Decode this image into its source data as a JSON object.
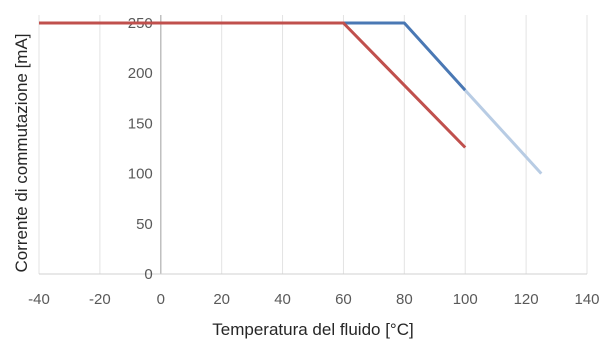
{
  "chart_data": {
    "type": "line",
    "xlabel": "Temperatura del fluido [°C]",
    "ylabel": "Corrente di commutazione [mA]",
    "xlim": [
      -40,
      140
    ],
    "ylim": [
      0,
      250
    ],
    "x_ticks": [
      -40,
      -20,
      0,
      20,
      40,
      60,
      80,
      100,
      120,
      140
    ],
    "y_ticks": [
      0,
      50,
      100,
      150,
      200,
      250
    ],
    "grid": "vertical",
    "legend": "none",
    "series": [
      {
        "color": "#4a78b4",
        "points": [
          [
            -40,
            250
          ],
          [
            80,
            250
          ],
          [
            100,
            183
          ]
        ]
      },
      {
        "color": "#b8cce4",
        "points": [
          [
            100,
            183
          ],
          [
            125,
            100
          ]
        ]
      },
      {
        "color": "#c0504d",
        "points": [
          [
            -40,
            250
          ],
          [
            60,
            250
          ],
          [
            100,
            126
          ]
        ]
      }
    ]
  }
}
